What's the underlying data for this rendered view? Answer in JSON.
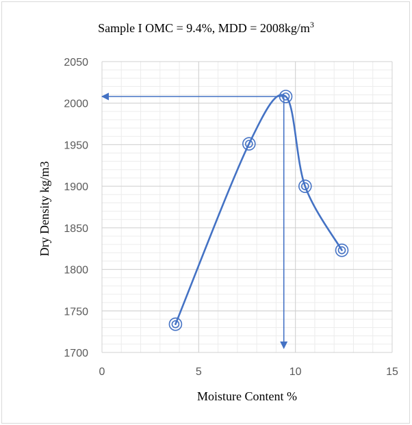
{
  "chart_data": {
    "type": "scatter",
    "title": "Sample I OMC = 9.4%, MDD = 2008kg/m",
    "title_superscript": "3",
    "xlabel": "Moisture Content %",
    "ylabel": "Dry Density kg/m3",
    "xlim": [
      0,
      15
    ],
    "ylim": [
      1700,
      2050
    ],
    "x_ticks": [
      0,
      5,
      10,
      15
    ],
    "y_ticks": [
      1700,
      1750,
      1800,
      1850,
      1900,
      1950,
      2000,
      2050
    ],
    "x_minor_step": 1,
    "y_minor_step": 10,
    "grid": true,
    "line_color": "#4472c4",
    "series": [
      {
        "x": [
          3.8,
          7.6,
          9.5,
          10.5,
          12.4
        ],
        "y": [
          1734,
          1951,
          2008,
          1900,
          1823
        ],
        "marker": "double-circle",
        "smooth": true
      }
    ],
    "annotations": [
      {
        "type": "arrow",
        "from": [
          9.4,
          2008
        ],
        "to": [
          0,
          2008
        ]
      },
      {
        "type": "arrow",
        "from": [
          9.4,
          2008
        ],
        "to": [
          9.4,
          1705
        ]
      }
    ]
  }
}
